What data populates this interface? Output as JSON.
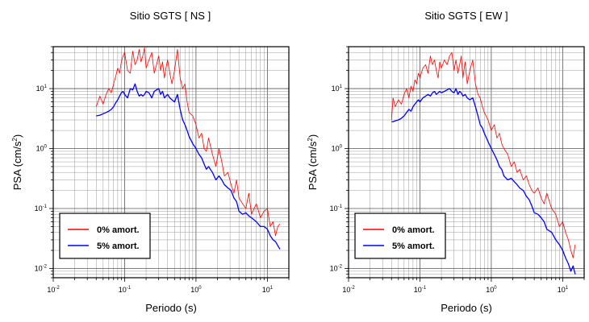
{
  "chart_data": [
    {
      "type": "line",
      "title": "Sitio SGTS [ NS ]",
      "xlabel": "Periodo (s)",
      "ylabel_base": "PSA (cm/s",
      "ylabel_sup": "2",
      "ylabel_close": ")",
      "xscale": "log",
      "yscale": "log",
      "xlim": [
        0.01,
        20
      ],
      "ylim": [
        0.007,
        50
      ],
      "grid": true,
      "legend_position": "bottom-left",
      "xtick_labels": [
        {
          "base": "10",
          "exp": "-2",
          "value": 0.01
        },
        {
          "base": "10",
          "exp": "-1",
          "value": 0.1
        },
        {
          "base": "10",
          "exp": "0",
          "value": 1
        },
        {
          "base": "10",
          "exp": "1",
          "value": 10
        }
      ],
      "ytick_labels": [
        {
          "base": "10",
          "exp": "-2",
          "value": 0.01
        },
        {
          "base": "10",
          "exp": "-1",
          "value": 0.1
        },
        {
          "base": "10",
          "exp": "0",
          "value": 1
        },
        {
          "base": "10",
          "exp": "1",
          "value": 10
        }
      ],
      "series": [
        {
          "name": "0% amort.",
          "color": "#ff0000",
          "x": [
            0.04,
            0.045,
            0.05,
            0.055,
            0.06,
            0.065,
            0.07,
            0.075,
            0.08,
            0.085,
            0.09,
            0.095,
            0.1,
            0.11,
            0.12,
            0.13,
            0.14,
            0.15,
            0.16,
            0.17,
            0.18,
            0.19,
            0.2,
            0.22,
            0.24,
            0.26,
            0.28,
            0.3,
            0.32,
            0.34,
            0.36,
            0.38,
            0.4,
            0.43,
            0.46,
            0.5,
            0.55,
            0.6,
            0.65,
            0.7,
            0.75,
            0.8,
            0.9,
            1.0,
            1.1,
            1.2,
            1.3,
            1.4,
            1.5,
            1.7,
            1.9,
            2.1,
            2.3,
            2.5,
            2.8,
            3.1,
            3.4,
            3.7,
            4.0,
            4.5,
            5.0,
            5.5,
            6.0,
            7.0,
            8.0,
            9.0,
            10.0,
            11.0,
            12.0,
            13.0,
            14.0,
            15.0
          ],
          "y": [
            5.0,
            7.5,
            5.5,
            8.0,
            10.0,
            8.5,
            12.0,
            16.0,
            22.0,
            18.0,
            28.0,
            35.0,
            40.0,
            20.0,
            18.0,
            42.0,
            25.0,
            30.0,
            45.0,
            28.0,
            35.0,
            48.0,
            22.0,
            30.0,
            40.0,
            18.0,
            25.0,
            35.0,
            20.0,
            28.0,
            15.0,
            22.0,
            30.0,
            18.0,
            12.0,
            20.0,
            45.0,
            15.0,
            10.0,
            12.0,
            6.0,
            4.0,
            3.5,
            2.5,
            1.5,
            1.8,
            1.0,
            0.9,
            1.5,
            0.8,
            0.5,
            1.0,
            0.6,
            0.35,
            0.4,
            0.25,
            0.18,
            0.3,
            0.15,
            0.12,
            0.1,
            0.18,
            0.08,
            0.12,
            0.07,
            0.09,
            0.1,
            0.05,
            0.06,
            0.035,
            0.05,
            0.055
          ]
        },
        {
          "name": "5% amort.",
          "color": "#0000ff",
          "x": [
            0.04,
            0.045,
            0.05,
            0.055,
            0.06,
            0.065,
            0.07,
            0.075,
            0.08,
            0.085,
            0.09,
            0.095,
            0.1,
            0.11,
            0.12,
            0.13,
            0.14,
            0.15,
            0.16,
            0.17,
            0.18,
            0.19,
            0.2,
            0.22,
            0.24,
            0.26,
            0.28,
            0.3,
            0.32,
            0.34,
            0.36,
            0.38,
            0.4,
            0.43,
            0.46,
            0.5,
            0.55,
            0.6,
            0.65,
            0.7,
            0.75,
            0.8,
            0.9,
            1.0,
            1.1,
            1.2,
            1.3,
            1.4,
            1.5,
            1.7,
            1.9,
            2.1,
            2.3,
            2.5,
            2.8,
            3.1,
            3.4,
            3.7,
            4.0,
            4.5,
            5.0,
            5.5,
            6.0,
            7.0,
            8.0,
            9.0,
            10.0,
            11.0,
            12.0,
            13.0,
            14.0,
            15.0
          ],
          "y": [
            3.5,
            3.6,
            3.8,
            4.0,
            4.2,
            4.5,
            5.0,
            5.8,
            6.5,
            7.5,
            8.5,
            9.0,
            8.0,
            7.0,
            10.0,
            9.5,
            12.0,
            9.0,
            7.5,
            8.0,
            7.5,
            8.0,
            9.0,
            8.5,
            7.0,
            9.0,
            9.5,
            10.0,
            8.0,
            9.0,
            7.0,
            7.5,
            8.0,
            7.0,
            6.5,
            6.0,
            8.0,
            4.5,
            3.0,
            2.5,
            2.0,
            1.6,
            1.2,
            1.0,
            0.8,
            0.7,
            0.55,
            0.45,
            0.5,
            0.4,
            0.3,
            0.35,
            0.3,
            0.25,
            0.22,
            0.2,
            0.15,
            0.13,
            0.09,
            0.08,
            0.085,
            0.075,
            0.07,
            0.06,
            0.05,
            0.05,
            0.045,
            0.035,
            0.03,
            0.028,
            0.024,
            0.021
          ]
        }
      ]
    },
    {
      "type": "line",
      "title": "Sitio SGTS [ EW ]",
      "xlabel": "Periodo (s)",
      "ylabel_base": "PSA (cm/s",
      "ylabel_sup": "2",
      "ylabel_close": ")",
      "xscale": "log",
      "yscale": "log",
      "xlim": [
        0.01,
        20
      ],
      "ylim": [
        0.007,
        50
      ],
      "grid": true,
      "legend_position": "bottom-left",
      "xtick_labels": [
        {
          "base": "10",
          "exp": "-2",
          "value": 0.01
        },
        {
          "base": "10",
          "exp": "-1",
          "value": 0.1
        },
        {
          "base": "10",
          "exp": "0",
          "value": 1
        },
        {
          "base": "10",
          "exp": "1",
          "value": 10
        }
      ],
      "ytick_labels": [
        {
          "base": "10",
          "exp": "-2",
          "value": 0.01
        },
        {
          "base": "10",
          "exp": "-1",
          "value": 0.1
        },
        {
          "base": "10",
          "exp": "0",
          "value": 1
        },
        {
          "base": "10",
          "exp": "1",
          "value": 10
        }
      ],
      "series": [
        {
          "name": "0% amort.",
          "color": "#ff0000",
          "x": [
            0.04,
            0.042,
            0.045,
            0.05,
            0.055,
            0.06,
            0.065,
            0.07,
            0.075,
            0.08,
            0.085,
            0.09,
            0.095,
            0.1,
            0.11,
            0.12,
            0.13,
            0.14,
            0.15,
            0.16,
            0.17,
            0.18,
            0.19,
            0.2,
            0.22,
            0.24,
            0.26,
            0.28,
            0.3,
            0.32,
            0.34,
            0.36,
            0.38,
            0.4,
            0.43,
            0.46,
            0.5,
            0.55,
            0.6,
            0.65,
            0.7,
            0.75,
            0.8,
            0.9,
            1.0,
            1.1,
            1.2,
            1.3,
            1.4,
            1.5,
            1.7,
            1.9,
            2.1,
            2.3,
            2.5,
            2.8,
            3.1,
            3.4,
            3.7,
            4.0,
            4.5,
            5.0,
            5.5,
            6.0,
            7.0,
            8.0,
            9.0,
            10.0,
            11.0,
            12.0,
            13.0,
            14.0,
            15.0
          ],
          "y": [
            3.0,
            7.0,
            5.0,
            6.5,
            5.5,
            8.0,
            10.0,
            7.0,
            11.0,
            9.0,
            14.0,
            12.0,
            18.0,
            15.0,
            22.0,
            25.0,
            18.0,
            35.0,
            25.0,
            30.0,
            20.0,
            15.0,
            28.0,
            22.0,
            30.0,
            25.0,
            35.0,
            40.0,
            20.0,
            30.0,
            18.0,
            25.0,
            35.0,
            15.0,
            28.0,
            12.0,
            20.0,
            30.0,
            12.0,
            8.0,
            7.0,
            5.0,
            4.0,
            3.0,
            2.0,
            2.5,
            1.5,
            1.8,
            1.2,
            1.0,
            0.8,
            0.5,
            0.6,
            0.4,
            0.45,
            0.3,
            0.35,
            0.25,
            0.2,
            0.18,
            0.22,
            0.15,
            0.12,
            0.18,
            0.1,
            0.08,
            0.05,
            0.06,
            0.04,
            0.03,
            0.02,
            0.015,
            0.025
          ]
        },
        {
          "name": "5% amort.",
          "color": "#0000ff",
          "x": [
            0.04,
            0.042,
            0.045,
            0.05,
            0.055,
            0.06,
            0.065,
            0.07,
            0.075,
            0.08,
            0.085,
            0.09,
            0.095,
            0.1,
            0.11,
            0.12,
            0.13,
            0.14,
            0.15,
            0.16,
            0.17,
            0.18,
            0.19,
            0.2,
            0.22,
            0.24,
            0.26,
            0.28,
            0.3,
            0.32,
            0.34,
            0.36,
            0.38,
            0.4,
            0.43,
            0.46,
            0.5,
            0.55,
            0.6,
            0.65,
            0.7,
            0.75,
            0.8,
            0.9,
            1.0,
            1.1,
            1.2,
            1.3,
            1.4,
            1.5,
            1.7,
            1.9,
            2.1,
            2.3,
            2.5,
            2.8,
            3.1,
            3.4,
            3.7,
            4.0,
            4.5,
            5.0,
            5.5,
            6.0,
            7.0,
            8.0,
            9.0,
            10.0,
            11.0,
            12.0,
            13.0,
            14.0,
            15.0
          ],
          "y": [
            2.8,
            2.8,
            2.9,
            3.0,
            3.2,
            3.5,
            4.0,
            4.5,
            4.2,
            5.0,
            5.5,
            6.0,
            6.5,
            6.0,
            7.0,
            7.5,
            8.0,
            7.5,
            8.5,
            9.0,
            8.0,
            8.5,
            9.0,
            8.5,
            9.0,
            9.5,
            10.0,
            9.0,
            8.5,
            10.0,
            8.0,
            9.0,
            8.5,
            7.5,
            8.0,
            7.0,
            6.5,
            7.0,
            5.0,
            3.5,
            2.5,
            2.2,
            1.8,
            1.3,
            1.0,
            0.8,
            0.65,
            0.5,
            0.45,
            0.35,
            0.3,
            0.32,
            0.28,
            0.25,
            0.22,
            0.2,
            0.16,
            0.14,
            0.11,
            0.085,
            0.08,
            0.07,
            0.06,
            0.045,
            0.04,
            0.03,
            0.025,
            0.02,
            0.015,
            0.012,
            0.009,
            0.011,
            0.008
          ]
        }
      ]
    }
  ]
}
